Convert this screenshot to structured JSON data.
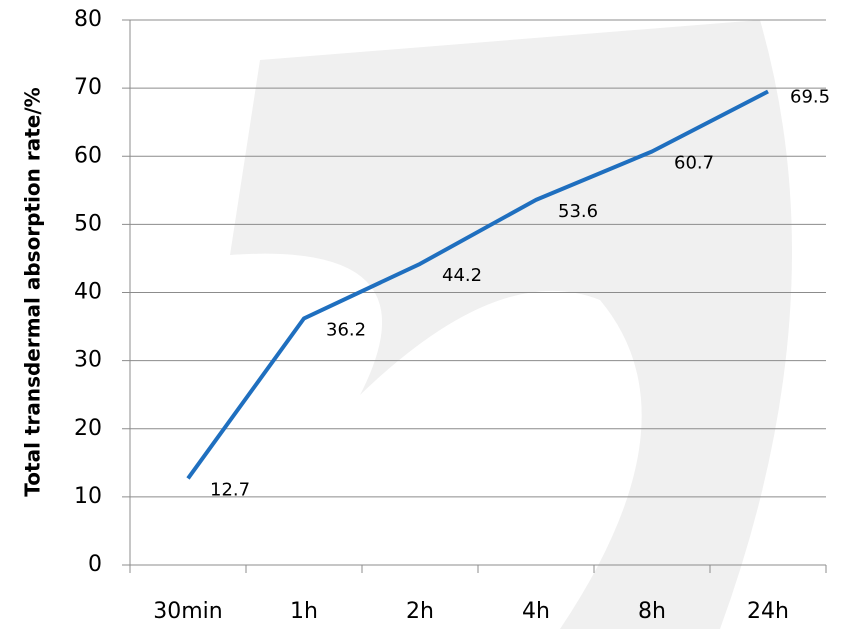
{
  "chart_data": {
    "type": "line",
    "y_label": "Total transdermal absorption rate/%",
    "categories": [
      "30min",
      "1h",
      "2h",
      "4h",
      "8h",
      "24h"
    ],
    "series": [
      {
        "name": "Total transdermal absorption rate",
        "color": "#1f6fbf",
        "values": [
          12.7,
          36.2,
          44.2,
          53.6,
          60.7,
          69.5
        ]
      }
    ],
    "ylim": [
      0,
      80
    ],
    "yticks": [
      0,
      10,
      20,
      30,
      40,
      50,
      60,
      70,
      80
    ],
    "grid": true
  }
}
